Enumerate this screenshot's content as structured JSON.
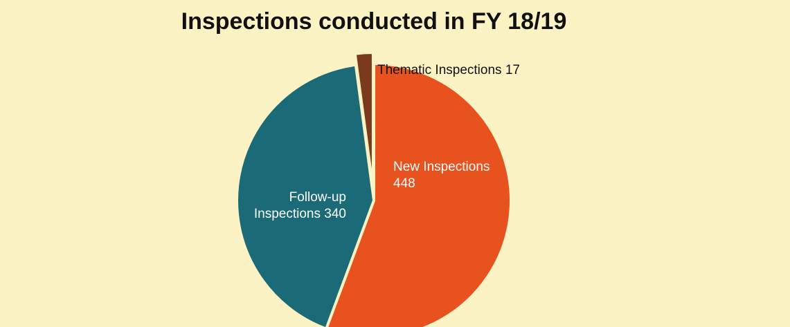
{
  "chart_data": {
    "type": "pie",
    "title": "Inspections conducted in FY 18/19",
    "categories": [
      "New Inspections",
      "Follow-up Inspections",
      "Thematic Inspections"
    ],
    "values": [
      448,
      340,
      17
    ],
    "colors": [
      "#e8521f",
      "#1b6a77",
      "#7b3a1b"
    ]
  }
}
